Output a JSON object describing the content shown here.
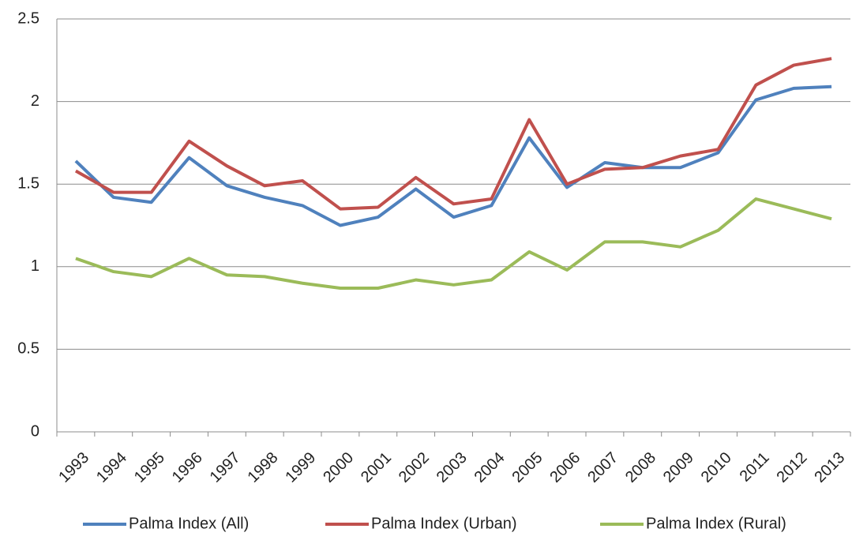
{
  "chart_data": {
    "type": "line",
    "categories": [
      "1993",
      "1994",
      "1995",
      "1996",
      "1997",
      "1998",
      "1999",
      "2000",
      "2001",
      "2002",
      "2003",
      "2004",
      "2005",
      "2006",
      "2007",
      "2008",
      "2009",
      "2010",
      "2011",
      "2012",
      "2013"
    ],
    "series": [
      {
        "name": "Palma Index (All)",
        "color": "#4f81bd",
        "values": [
          1.64,
          1.42,
          1.39,
          1.66,
          1.49,
          1.42,
          1.37,
          1.25,
          1.3,
          1.47,
          1.3,
          1.37,
          1.78,
          1.48,
          1.63,
          1.6,
          1.6,
          1.69,
          2.01,
          2.08,
          2.09
        ]
      },
      {
        "name": "Palma Index (Urban)",
        "color": "#c0504d",
        "values": [
          1.58,
          1.45,
          1.45,
          1.76,
          1.61,
          1.49,
          1.52,
          1.35,
          1.36,
          1.54,
          1.38,
          1.41,
          1.89,
          1.5,
          1.59,
          1.6,
          1.67,
          1.71,
          2.1,
          2.22,
          2.26
        ]
      },
      {
        "name": "Palma Index (Rural)",
        "color": "#9bbb59",
        "values": [
          1.05,
          0.97,
          0.94,
          1.05,
          0.95,
          0.94,
          0.9,
          0.87,
          0.87,
          0.92,
          0.89,
          0.92,
          1.09,
          0.98,
          1.15,
          1.15,
          1.12,
          1.22,
          1.41,
          1.35,
          1.29
        ]
      }
    ],
    "ylim": [
      0,
      2.5
    ],
    "yticks": [
      0,
      0.5,
      1,
      1.5,
      2,
      2.5
    ],
    "grid": true,
    "legend": "bottom"
  }
}
